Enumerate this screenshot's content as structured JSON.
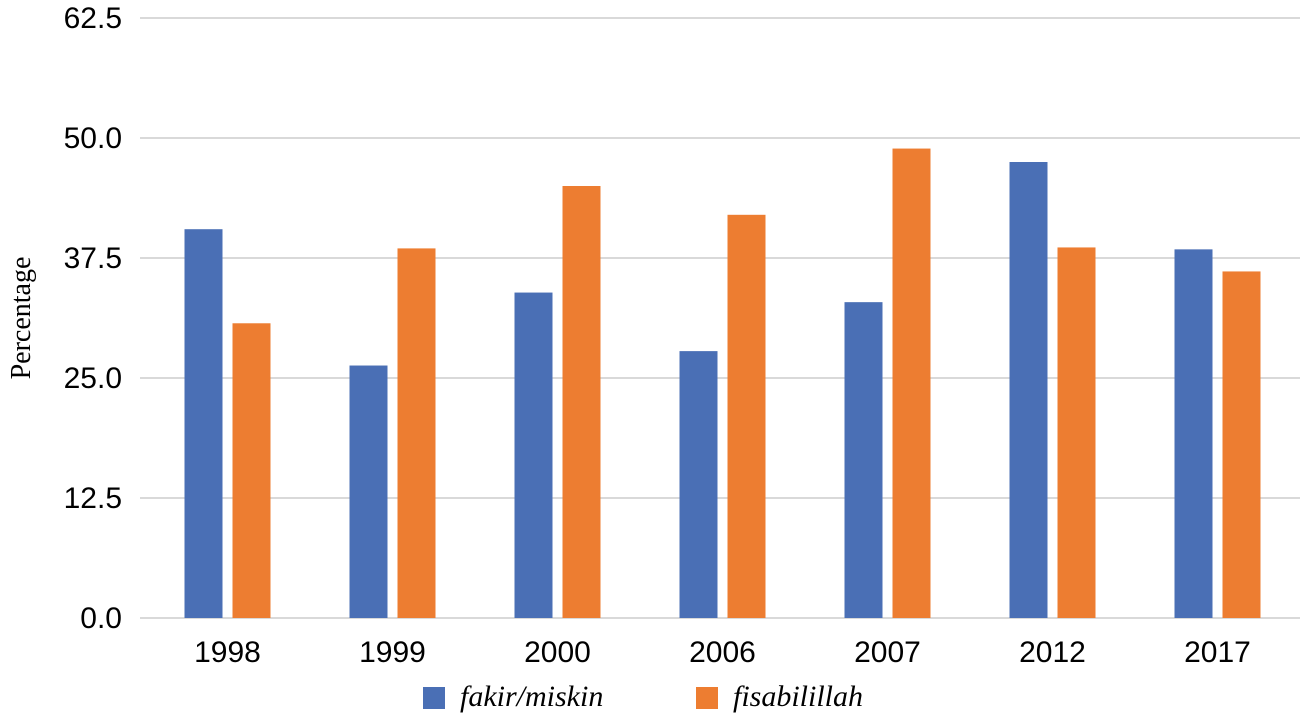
{
  "chart_data": {
    "type": "bar",
    "title": "",
    "xlabel": "",
    "ylabel": "Percentage",
    "categories": [
      "1998",
      "1999",
      "2000",
      "2006",
      "2007",
      "2012",
      "2017"
    ],
    "series": [
      {
        "name": "fakir/miskin",
        "color": "#4A6FB5",
        "values": [
          40.5,
          26.3,
          33.9,
          27.8,
          32.9,
          47.5,
          38.4
        ]
      },
      {
        "name": "fisabilillah",
        "color": "#ED7D31",
        "values": [
          30.7,
          38.5,
          45.0,
          42.0,
          48.9,
          38.6,
          36.1
        ]
      }
    ],
    "ylim": [
      0,
      62.5
    ],
    "yticks": [
      "0.0",
      "12.5",
      "25.0",
      "37.5",
      "50.0",
      "62.5"
    ],
    "grid": true,
    "gridColor": "#d9d9d9",
    "legend": "bottom"
  }
}
